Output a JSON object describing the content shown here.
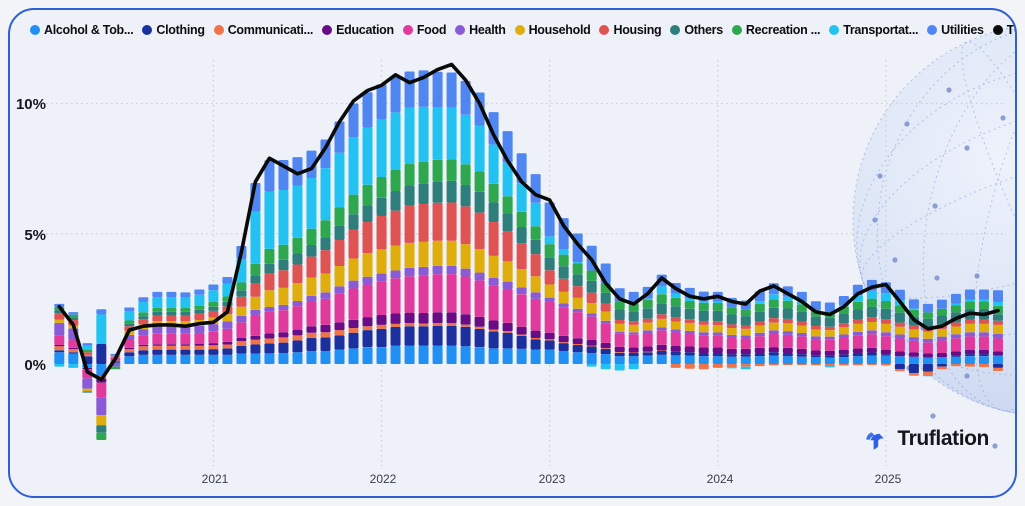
{
  "theme": {
    "card_border": "#2e5fd6",
    "card_bg": "#eef1f8",
    "page_bg": "#f2f4f8",
    "grid": "#c8cdd8"
  },
  "legend": {
    "items": [
      {
        "label": "Alcohol & Tob...",
        "color": "#2090f4"
      },
      {
        "label": "Clothing",
        "color": "#1b2f9e"
      },
      {
        "label": "Communicati...",
        "color": "#f0744a"
      },
      {
        "label": "Education",
        "color": "#6a0c85"
      },
      {
        "label": "Food",
        "color": "#e23a9c"
      },
      {
        "label": "Health",
        "color": "#8a5bd6"
      },
      {
        "label": "Household",
        "color": "#dfae0d"
      },
      {
        "label": "Housing",
        "color": "#e05353"
      },
      {
        "label": "Others",
        "color": "#2e7f7b"
      },
      {
        "label": "Recreation ...",
        "color": "#2ea84f"
      },
      {
        "label": "Transportat...",
        "color": "#22c3f2"
      },
      {
        "label": "Utilities",
        "color": "#4f86f2"
      },
      {
        "label": "TOTAL",
        "color": "#0a0a0a"
      }
    ]
  },
  "y_axis": {
    "labels": [
      "10%",
      "5%",
      "0%"
    ]
  },
  "x_axis": {
    "labels": [
      "2021",
      "2022",
      "2023",
      "2024",
      "2025"
    ]
  },
  "footer": {
    "brand": "Truflation"
  },
  "chart_data": {
    "type": "bar",
    "subtype": "stacked-bar-with-line",
    "title": "",
    "ylabel": "",
    "xlabel": "",
    "ylim": [
      -3.5,
      12
    ],
    "y_ticks": [
      "0%",
      "5%",
      "10%"
    ],
    "grid": "dotted",
    "legend_position": "top",
    "year_tick_indices": [
      11,
      23,
      35,
      47,
      59
    ],
    "x": [
      "2020-02",
      "2020-03",
      "2020-04",
      "2020-05",
      "2020-06",
      "2020-07",
      "2020-08",
      "2020-09",
      "2020-10",
      "2020-11",
      "2020-12",
      "2021-01",
      "2021-02",
      "2021-03",
      "2021-04",
      "2021-05",
      "2021-06",
      "2021-07",
      "2021-08",
      "2021-09",
      "2021-10",
      "2021-11",
      "2021-12",
      "2022-01",
      "2022-02",
      "2022-03",
      "2022-04",
      "2022-05",
      "2022-06",
      "2022-07",
      "2022-08",
      "2022-09",
      "2022-10",
      "2022-11",
      "2022-12",
      "2023-01",
      "2023-02",
      "2023-03",
      "2023-04",
      "2023-05",
      "2023-06",
      "2023-07",
      "2023-08",
      "2023-09",
      "2023-10",
      "2023-11",
      "2023-12",
      "2024-01",
      "2024-02",
      "2024-03",
      "2024-04",
      "2024-05",
      "2024-06",
      "2024-07",
      "2024-08",
      "2024-09",
      "2024-10",
      "2024-11",
      "2024-12",
      "2025-01",
      "2025-02",
      "2025-03",
      "2025-04",
      "2025-05",
      "2025-06",
      "2025-07",
      "2025-08",
      "2025-09"
    ],
    "series": [
      {
        "name": "Alcohol & Tob...",
        "color": "#2090f4",
        "values": [
          0.45,
          0.4,
          -0.15,
          -0.46,
          0.05,
          0.3,
          0.35,
          0.35,
          0.35,
          0.35,
          0.35,
          0.35,
          0.35,
          0.4,
          0.4,
          0.41,
          0.42,
          0.45,
          0.5,
          0.5,
          0.55,
          0.6,
          0.65,
          0.65,
          0.7,
          0.7,
          0.7,
          0.7,
          0.7,
          0.68,
          0.65,
          0.6,
          0.6,
          0.58,
          0.55,
          0.55,
          0.5,
          0.45,
          0.42,
          0.38,
          0.3,
          0.3,
          0.32,
          0.35,
          0.33,
          0.32,
          0.3,
          0.3,
          0.28,
          0.28,
          0.3,
          0.32,
          0.3,
          0.28,
          0.26,
          0.25,
          0.27,
          0.3,
          0.32,
          0.32,
          0.3,
          0.28,
          0.25,
          0.26,
          0.28,
          0.3,
          0.3,
          0.32
        ]
      },
      {
        "name": "Clothing",
        "color": "#1b2f9e",
        "values": [
          0.08,
          0.05,
          0.3,
          0.77,
          0.05,
          0.15,
          0.18,
          0.2,
          0.2,
          0.2,
          0.2,
          0.22,
          0.25,
          0.3,
          0.35,
          0.38,
          0.4,
          0.45,
          0.5,
          0.52,
          0.55,
          0.6,
          0.65,
          0.7,
          0.72,
          0.75,
          0.75,
          0.77,
          0.77,
          0.75,
          0.7,
          0.65,
          0.6,
          0.5,
          0.4,
          0.35,
          0.3,
          0.28,
          0.25,
          0.2,
          0.13,
          0.12,
          0.13,
          0.15,
          0.14,
          0.13,
          0.12,
          0.12,
          0.1,
          0.1,
          0.12,
          0.13,
          0.12,
          0.1,
          0.08,
          0.08,
          0.1,
          0.12,
          0.12,
          0.05,
          -0.2,
          -0.35,
          -0.3,
          -0.1,
          0.05,
          0.08,
          0.08,
          -0.15
        ]
      },
      {
        "name": "Communicati...",
        "color": "#f0744a",
        "values": [
          0.15,
          0.12,
          0.05,
          -0.09,
          0.03,
          0.12,
          0.15,
          0.15,
          0.15,
          0.15,
          0.15,
          0.15,
          0.15,
          0.18,
          0.18,
          0.19,
          0.2,
          0.2,
          0.2,
          0.2,
          0.2,
          0.18,
          0.15,
          0.15,
          0.12,
          0.12,
          0.1,
          0.1,
          0.1,
          0.08,
          0.08,
          0.07,
          0.06,
          0.05,
          0.05,
          0.05,
          0.04,
          0.04,
          0.03,
          0.03,
          0.03,
          0.02,
          0.02,
          0.02,
          -0.15,
          -0.18,
          -0.2,
          -0.15,
          -0.12,
          -0.1,
          -0.08,
          -0.05,
          -0.04,
          -0.04,
          -0.05,
          -0.08,
          -0.06,
          -0.05,
          -0.04,
          -0.06,
          -0.08,
          -0.1,
          -0.12,
          -0.1,
          -0.08,
          -0.1,
          -0.12,
          -0.12
        ]
      },
      {
        "name": "Education",
        "color": "#6a0c85",
        "values": [
          0.05,
          0.05,
          -0.05,
          -0.17,
          0.02,
          0.05,
          0.06,
          0.06,
          0.06,
          0.06,
          0.07,
          0.08,
          0.1,
          0.12,
          0.15,
          0.19,
          0.2,
          0.22,
          0.25,
          0.28,
          0.3,
          0.32,
          0.35,
          0.38,
          0.4,
          0.4,
          0.41,
          0.41,
          0.41,
          0.4,
          0.38,
          0.35,
          0.32,
          0.3,
          0.28,
          0.25,
          0.24,
          0.22,
          0.22,
          0.2,
          0.2,
          0.2,
          0.2,
          0.22,
          0.22,
          0.22,
          0.22,
          0.22,
          0.2,
          0.2,
          0.2,
          0.2,
          0.2,
          0.2,
          0.18,
          0.18,
          0.18,
          0.18,
          0.18,
          0.18,
          0.18,
          0.16,
          0.16,
          0.16,
          0.16,
          0.16,
          0.16,
          0.16
        ]
      },
      {
        "name": "Food",
        "color": "#e23a9c",
        "values": [
          0.35,
          0.3,
          -0.35,
          -0.55,
          0.1,
          0.3,
          0.35,
          0.4,
          0.4,
          0.4,
          0.42,
          0.45,
          0.5,
          0.6,
          0.8,
          0.83,
          0.85,
          0.9,
          0.95,
          1.0,
          1.1,
          1.2,
          1.25,
          1.3,
          1.35,
          1.4,
          1.45,
          1.47,
          1.47,
          1.45,
          1.4,
          1.35,
          1.3,
          1.25,
          1.22,
          1.2,
          1.1,
          1.0,
          0.9,
          0.75,
          0.5,
          0.5,
          0.52,
          0.55,
          0.52,
          0.48,
          0.46,
          0.45,
          0.42,
          0.4,
          0.45,
          0.5,
          0.5,
          0.48,
          0.42,
          0.42,
          0.45,
          0.5,
          0.52,
          0.52,
          0.5,
          0.45,
          0.42,
          0.48,
          0.5,
          0.52,
          0.52,
          0.5
        ]
      },
      {
        "name": "Health",
        "color": "#8a5bd6",
        "values": [
          0.5,
          0.45,
          -0.4,
          -0.7,
          -0.1,
          0.2,
          0.25,
          0.28,
          0.28,
          0.28,
          0.28,
          0.28,
          0.28,
          0.25,
          0.2,
          0.19,
          0.2,
          0.2,
          0.22,
          0.25,
          0.28,
          0.3,
          0.3,
          0.3,
          0.3,
          0.32,
          0.32,
          0.32,
          0.32,
          0.3,
          0.3,
          0.28,
          0.28,
          0.26,
          0.25,
          0.15,
          0.14,
          0.13,
          0.12,
          0.1,
          0.08,
          0.08,
          0.1,
          0.12,
          0.12,
          0.12,
          0.12,
          0.12,
          0.12,
          0.12,
          0.13,
          0.14,
          0.14,
          0.13,
          0.12,
          0.12,
          0.13,
          0.14,
          0.15,
          0.15,
          0.15,
          0.14,
          0.14,
          0.15,
          0.15,
          0.16,
          0.16,
          0.17
        ]
      },
      {
        "name": "Household",
        "color": "#dfae0d",
        "values": [
          0.12,
          0.1,
          -0.1,
          -0.38,
          0.02,
          0.15,
          0.18,
          0.2,
          0.2,
          0.2,
          0.22,
          0.25,
          0.28,
          0.35,
          0.5,
          0.64,
          0.65,
          0.68,
          0.7,
          0.72,
          0.78,
          0.85,
          0.9,
          0.92,
          0.95,
          0.96,
          0.96,
          0.96,
          0.96,
          0.94,
          0.9,
          0.85,
          0.78,
          0.7,
          0.62,
          0.5,
          0.45,
          0.42,
          0.4,
          0.35,
          0.3,
          0.28,
          0.3,
          0.32,
          0.3,
          0.3,
          0.28,
          0.28,
          0.26,
          0.25,
          0.28,
          0.3,
          0.3,
          0.28,
          0.26,
          0.25,
          0.28,
          0.3,
          0.32,
          0.32,
          0.3,
          0.3,
          0.28,
          0.3,
          0.3,
          0.32,
          0.32,
          0.35
        ]
      },
      {
        "name": "Housing",
        "color": "#e05353",
        "values": [
          0.25,
          0.22,
          0.1,
          0.0,
          0.03,
          0.18,
          0.2,
          0.22,
          0.22,
          0.22,
          0.24,
          0.26,
          0.3,
          0.38,
          0.5,
          0.64,
          0.68,
          0.72,
          0.8,
          0.9,
          1.0,
          1.1,
          1.2,
          1.28,
          1.35,
          1.42,
          1.45,
          1.46,
          1.47,
          1.45,
          1.4,
          1.3,
          1.15,
          1.0,
          0.85,
          0.55,
          0.5,
          0.45,
          0.4,
          0.3,
          0.15,
          0.14,
          0.15,
          0.18,
          0.16,
          0.15,
          0.15,
          0.15,
          0.14,
          0.13,
          0.15,
          0.17,
          0.17,
          0.16,
          0.14,
          0.13,
          0.15,
          0.17,
          0.18,
          0.18,
          0.16,
          0.15,
          0.14,
          0.15,
          0.16,
          0.17,
          0.17,
          0.16
        ]
      },
      {
        "name": "Others",
        "color": "#2e7f7b",
        "values": [
          0.12,
          0.1,
          -0.05,
          -0.29,
          0.02,
          0.1,
          0.12,
          0.14,
          0.14,
          0.14,
          0.15,
          0.16,
          0.18,
          0.25,
          0.32,
          0.38,
          0.4,
          0.42,
          0.45,
          0.5,
          0.55,
          0.6,
          0.65,
          0.7,
          0.75,
          0.78,
          0.8,
          0.82,
          0.83,
          0.82,
          0.8,
          0.75,
          0.7,
          0.62,
          0.55,
          0.5,
          0.48,
          0.45,
          0.45,
          0.42,
          0.4,
          0.38,
          0.4,
          0.42,
          0.42,
          0.4,
          0.4,
          0.4,
          0.38,
          0.36,
          0.38,
          0.4,
          0.4,
          0.38,
          0.36,
          0.35,
          0.36,
          0.38,
          0.4,
          0.4,
          0.38,
          0.34,
          0.34,
          0.36,
          0.38,
          0.4,
          0.4,
          0.25
        ]
      },
      {
        "name": "Recreation ...",
        "color": "#2ea84f",
        "values": [
          0.12,
          0.1,
          0.1,
          -0.28,
          -0.1,
          0.12,
          0.14,
          0.15,
          0.15,
          0.15,
          0.16,
          0.18,
          0.2,
          0.3,
          0.45,
          0.57,
          0.58,
          0.6,
          0.62,
          0.65,
          0.7,
          0.75,
          0.78,
          0.8,
          0.82,
          0.83,
          0.83,
          0.83,
          0.83,
          0.8,
          0.78,
          0.72,
          0.65,
          0.58,
          0.52,
          0.5,
          0.45,
          0.42,
          0.4,
          0.38,
          0.32,
          0.3,
          0.32,
          0.35,
          0.33,
          0.3,
          0.3,
          0.3,
          0.28,
          0.26,
          0.3,
          0.32,
          0.3,
          0.28,
          0.24,
          0.25,
          0.28,
          0.3,
          0.32,
          0.3,
          0.28,
          0.26,
          0.25,
          0.26,
          0.28,
          0.3,
          0.3,
          0.32
        ]
      },
      {
        "name": "Transportat...",
        "color": "#22c3f2",
        "values": [
          -0.1,
          -0.15,
          0.15,
          1.13,
          0.02,
          0.35,
          0.4,
          0.42,
          0.42,
          0.4,
          0.42,
          0.45,
          0.5,
          0.9,
          2.0,
          2.2,
          2.1,
          2.0,
          1.95,
          2.0,
          2.1,
          2.2,
          2.2,
          2.2,
          2.2,
          2.15,
          2.1,
          2.0,
          1.98,
          1.9,
          1.75,
          1.5,
          1.3,
          1.1,
          0.9,
          0.3,
          0.2,
          0.05,
          -0.1,
          -0.2,
          -0.25,
          -0.2,
          0.05,
          0.3,
          0.15,
          0.1,
          0.05,
          0.05,
          -0.05,
          -0.1,
          0.1,
          0.2,
          0.15,
          0.1,
          0.0,
          -0.05,
          0.05,
          0.25,
          0.3,
          0.3,
          0.2,
          0.05,
          -0.05,
          0.0,
          0.05,
          0.05,
          0.05,
          0.15
        ]
      },
      {
        "name": "Utilities",
        "color": "#4f86f2",
        "values": [
          0.12,
          0.1,
          0.1,
          0.2,
          0.05,
          0.15,
          0.18,
          0.2,
          0.2,
          0.2,
          0.2,
          0.22,
          0.25,
          0.5,
          1.1,
          1.2,
          1.15,
          1.1,
          1.05,
          1.1,
          1.2,
          1.3,
          1.35,
          1.35,
          1.4,
          1.4,
          1.4,
          1.38,
          1.35,
          1.3,
          1.28,
          1.25,
          1.2,
          1.15,
          1.1,
          1.3,
          1.2,
          1.1,
          0.95,
          0.75,
          0.5,
          0.45,
          0.45,
          0.45,
          0.42,
          0.4,
          0.38,
          0.38,
          0.36,
          0.34,
          0.38,
          0.42,
          0.4,
          0.38,
          0.35,
          0.33,
          0.36,
          0.4,
          0.42,
          0.42,
          0.4,
          0.35,
          0.33,
          0.35,
          0.38,
          0.4,
          0.4,
          0.45
        ]
      }
    ],
    "total": {
      "name": "TOTAL",
      "color": "#0a0a0a",
      "values": [
        2.2,
        1.5,
        -0.3,
        -0.6,
        0.2,
        1.3,
        1.45,
        1.5,
        1.5,
        1.45,
        1.55,
        1.6,
        2.0,
        4.3,
        7.0,
        7.9,
        7.6,
        7.3,
        7.5,
        8.3,
        9.3,
        10.1,
        10.5,
        10.7,
        11.1,
        10.8,
        11.0,
        11.3,
        11.5,
        10.9,
        10.0,
        8.8,
        7.8,
        7.0,
        6.5,
        6.3,
        5.3,
        4.6,
        4.0,
        3.1,
        2.5,
        2.3,
        2.7,
        3.3,
        2.9,
        2.6,
        2.5,
        2.6,
        2.4,
        2.3,
        2.8,
        3.0,
        2.7,
        2.4,
        2.0,
        1.9,
        2.2,
        2.7,
        2.95,
        3.05,
        2.4,
        1.7,
        1.35,
        1.45,
        1.75,
        1.95,
        1.9,
        2.05
      ]
    }
  }
}
